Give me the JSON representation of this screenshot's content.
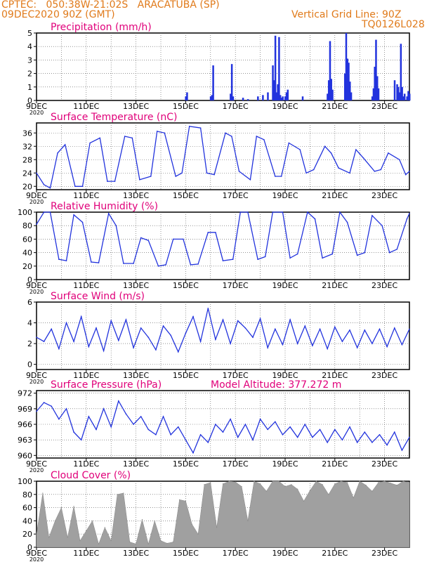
{
  "header": {
    "left_line1": "CPTEC:   050:38W-21:02S   ARACATUBA (SP)",
    "left_line2": "09DEC2020 90Z (GMT)",
    "right_line1": "Vertical Grid Line: 90Z",
    "right_line2": "TQ0126L028"
  },
  "colors": {
    "header": "#e07a1a",
    "title": "#e0007a",
    "series": "#2233dd",
    "cloud": "#a0a0a0",
    "axis": "#000000"
  },
  "x_axis": {
    "tick_labels": [
      "9DEC",
      "11DEC",
      "13DEC",
      "15DEC",
      "17DEC",
      "19DEC",
      "21DEC",
      "23DEC"
    ],
    "tick_days": [
      9,
      11,
      13,
      15,
      17,
      19,
      21,
      23
    ],
    "range_days": [
      9,
      24
    ],
    "year_fragment": "2020"
  },
  "chart_data": [
    {
      "type": "bar",
      "title": "Precipitation (mm/h)",
      "ylim": [
        0,
        5
      ],
      "yticks": [
        0,
        1,
        2,
        3,
        4,
        5
      ],
      "x": [
        15.0,
        15.05,
        16.0,
        16.05,
        16.1,
        16.8,
        16.85,
        16.9,
        17.3,
        17.5,
        17.9,
        18.1,
        18.3,
        18.5,
        18.55,
        18.6,
        18.65,
        18.7,
        18.75,
        18.8,
        18.85,
        18.9,
        19.0,
        19.05,
        19.1,
        19.7,
        20.7,
        20.75,
        20.8,
        20.85,
        20.9,
        21.4,
        21.45,
        21.5,
        21.55,
        21.6,
        21.65,
        22.5,
        22.55,
        22.6,
        22.65,
        22.7,
        22.75,
        23.4,
        23.5,
        23.55,
        23.6,
        23.65,
        23.7,
        23.75,
        23.8,
        23.9,
        23.95,
        24.0
      ],
      "values": [
        0.3,
        0.6,
        0.3,
        0.4,
        2.6,
        0.5,
        2.7,
        0.3,
        0.2,
        0.1,
        0.3,
        0.4,
        0.6,
        2.6,
        1.5,
        4.8,
        0.6,
        1.2,
        4.7,
        0.4,
        0.2,
        0.3,
        0.3,
        0.6,
        0.8,
        0.3,
        0.5,
        1.5,
        4.4,
        1.6,
        0.8,
        2.0,
        5.0,
        3.1,
        2.8,
        1.4,
        0.6,
        0.3,
        0.9,
        2.5,
        4.5,
        1.8,
        0.9,
        1.5,
        1.2,
        1.0,
        0.6,
        4.2,
        1.0,
        0.3,
        0.5,
        0.3,
        0.7,
        0.5
      ],
      "series_color": "#2233dd"
    },
    {
      "type": "line",
      "title": "Surface Temperature (nC)",
      "ylim": [
        19,
        39
      ],
      "yticks": [
        20,
        24,
        28,
        32,
        36
      ],
      "x": [
        9.0,
        9.3,
        9.55,
        9.85,
        10.15,
        10.55,
        10.85,
        11.15,
        11.55,
        11.85,
        12.15,
        12.55,
        12.85,
        13.15,
        13.6,
        13.85,
        14.15,
        14.6,
        14.85,
        15.15,
        15.6,
        15.85,
        16.15,
        16.6,
        16.85,
        17.15,
        17.6,
        17.85,
        18.15,
        18.6,
        18.85,
        19.15,
        19.6,
        19.85,
        20.15,
        20.6,
        20.85,
        21.15,
        21.6,
        21.85,
        22.15,
        22.6,
        22.85,
        23.15,
        23.6,
        23.85,
        24.0
      ],
      "values": [
        24,
        20.5,
        19.5,
        30,
        32.5,
        20,
        20,
        33,
        34.5,
        21.5,
        21.5,
        35,
        34.5,
        22,
        23,
        36.5,
        36,
        23,
        24,
        38,
        37.5,
        24,
        23.5,
        36,
        35,
        24.5,
        22,
        35,
        34,
        23,
        23,
        33,
        31,
        24,
        25,
        32,
        30,
        25.5,
        24,
        31,
        28.5,
        24.5,
        25,
        30,
        28,
        23.5,
        24.5
      ],
      "series_color": "#2233dd"
    },
    {
      "type": "line",
      "title": "Relative Humidity (%)",
      "ylim": [
        0,
        100
      ],
      "yticks": [
        0,
        20,
        40,
        60,
        80,
        100
      ],
      "x": [
        9.0,
        9.3,
        9.55,
        9.9,
        10.2,
        10.5,
        10.85,
        11.2,
        11.5,
        11.9,
        12.2,
        12.5,
        12.9,
        13.2,
        13.5,
        13.9,
        14.2,
        14.5,
        14.9,
        15.2,
        15.5,
        15.9,
        16.2,
        16.5,
        16.9,
        17.2,
        17.5,
        17.9,
        18.2,
        18.5,
        18.9,
        19.2,
        19.5,
        19.9,
        20.2,
        20.5,
        20.9,
        21.2,
        21.5,
        21.9,
        22.2,
        22.5,
        22.9,
        23.2,
        23.5,
        23.9,
        24.0
      ],
      "values": [
        82,
        100,
        100,
        30,
        28,
        96,
        85,
        26,
        25,
        98,
        80,
        24,
        24,
        62,
        58,
        20,
        22,
        60,
        60,
        22,
        23,
        70,
        70,
        28,
        30,
        100,
        100,
        30,
        34,
        100,
        100,
        32,
        38,
        100,
        90,
        32,
        38,
        100,
        85,
        36,
        40,
        95,
        80,
        40,
        45,
        90,
        98
      ],
      "series_color": "#2233dd"
    },
    {
      "type": "line",
      "title": "Surface Wind (m/s)",
      "ylim": [
        -0.5,
        6
      ],
      "yticks": [
        0,
        2,
        4,
        6
      ],
      "x": [
        9.0,
        9.3,
        9.6,
        9.9,
        10.2,
        10.5,
        10.8,
        11.1,
        11.4,
        11.7,
        12.0,
        12.3,
        12.6,
        12.9,
        13.2,
        13.5,
        13.8,
        14.1,
        14.4,
        14.7,
        15.0,
        15.3,
        15.6,
        15.9,
        16.2,
        16.5,
        16.8,
        17.1,
        17.4,
        17.7,
        18.0,
        18.3,
        18.6,
        18.9,
        19.2,
        19.5,
        19.8,
        20.1,
        20.4,
        20.7,
        21.0,
        21.3,
        21.6,
        21.9,
        22.2,
        22.5,
        22.8,
        23.1,
        23.4,
        23.7,
        24.0
      ],
      "values": [
        2.6,
        2.2,
        3.4,
        1.5,
        4.0,
        2.2,
        4.6,
        1.7,
        3.5,
        1.3,
        4.2,
        2.3,
        4.3,
        1.6,
        3.5,
        2.6,
        1.4,
        3.7,
        2.8,
        1.2,
        3.0,
        4.6,
        2.2,
        5.4,
        2.4,
        4.3,
        2.0,
        4.2,
        3.5,
        2.6,
        4.4,
        1.6,
        3.4,
        1.9,
        4.3,
        2.0,
        3.7,
        1.8,
        3.4,
        1.5,
        3.6,
        2.2,
        3.3,
        1.6,
        3.3,
        2.0,
        3.4,
        1.7,
        3.5,
        1.9,
        3.4
      ],
      "series_color": "#2233dd"
    },
    {
      "type": "line",
      "title": "Surface Pressure (hPa)",
      "subtitle": "Model Altitude: 377.272 m",
      "ylim": [
        959.5,
        972.5
      ],
      "yticks": [
        960,
        963,
        966,
        969,
        972
      ],
      "x": [
        9.0,
        9.3,
        9.6,
        9.9,
        10.2,
        10.5,
        10.8,
        11.1,
        11.4,
        11.7,
        12.0,
        12.3,
        12.6,
        12.9,
        13.2,
        13.5,
        13.8,
        14.1,
        14.4,
        14.7,
        15.0,
        15.3,
        15.6,
        15.9,
        16.2,
        16.5,
        16.8,
        17.1,
        17.4,
        17.7,
        18.0,
        18.3,
        18.6,
        18.9,
        19.2,
        19.5,
        19.8,
        20.1,
        20.4,
        20.7,
        21.0,
        21.3,
        21.6,
        21.9,
        22.2,
        22.5,
        22.8,
        23.1,
        23.4,
        23.7,
        24.0
      ],
      "values": [
        968.5,
        970.2,
        969.5,
        967.0,
        969.0,
        964.5,
        963.0,
        967.5,
        965.0,
        969.0,
        965.5,
        970.5,
        968.0,
        966.0,
        967.5,
        965.0,
        964.0,
        967.5,
        964.0,
        965.5,
        963.0,
        960.5,
        964.0,
        962.5,
        966.0,
        964.5,
        967.0,
        963.5,
        966.0,
        963.0,
        967.0,
        965.0,
        966.5,
        964.0,
        965.5,
        963.5,
        966.0,
        963.5,
        965.0,
        962.5,
        965.0,
        963.0,
        965.5,
        962.5,
        964.5,
        962.5,
        964.0,
        962.0,
        964.5,
        961.0,
        963.5
      ],
      "series_color": "#2233dd"
    },
    {
      "type": "area",
      "title": "Cloud Cover (%)",
      "ylim": [
        0,
        100
      ],
      "yticks": [
        0,
        20,
        40,
        60,
        80,
        100
      ],
      "x": [
        9.0,
        9.25,
        9.5,
        9.75,
        10.0,
        10.25,
        10.5,
        10.75,
        11.0,
        11.25,
        11.5,
        11.75,
        12.0,
        12.25,
        12.5,
        12.75,
        13.0,
        13.25,
        13.5,
        13.75,
        14.0,
        14.25,
        14.5,
        14.75,
        15.0,
        15.25,
        15.5,
        15.75,
        16.0,
        16.25,
        16.5,
        16.75,
        17.0,
        17.25,
        17.5,
        17.75,
        18.0,
        18.25,
        18.5,
        18.75,
        19.0,
        19.25,
        19.5,
        19.75,
        20.0,
        20.25,
        20.5,
        20.75,
        21.0,
        21.25,
        21.5,
        21.75,
        22.0,
        22.25,
        22.5,
        22.75,
        23.0,
        23.25,
        23.5,
        23.75,
        24.0
      ],
      "values": [
        20,
        82,
        15,
        40,
        60,
        15,
        62,
        10,
        25,
        40,
        5,
        30,
        10,
        80,
        82,
        8,
        5,
        42,
        5,
        40,
        10,
        6,
        8,
        72,
        70,
        35,
        20,
        95,
        98,
        30,
        96,
        100,
        99,
        92,
        40,
        100,
        96,
        85,
        100,
        100,
        92,
        95,
        88,
        70,
        86,
        100,
        95,
        80,
        96,
        100,
        98,
        75,
        100,
        94,
        85,
        98,
        100,
        97,
        94,
        100,
        98
      ],
      "series_color": "#a0a0a0"
    }
  ]
}
